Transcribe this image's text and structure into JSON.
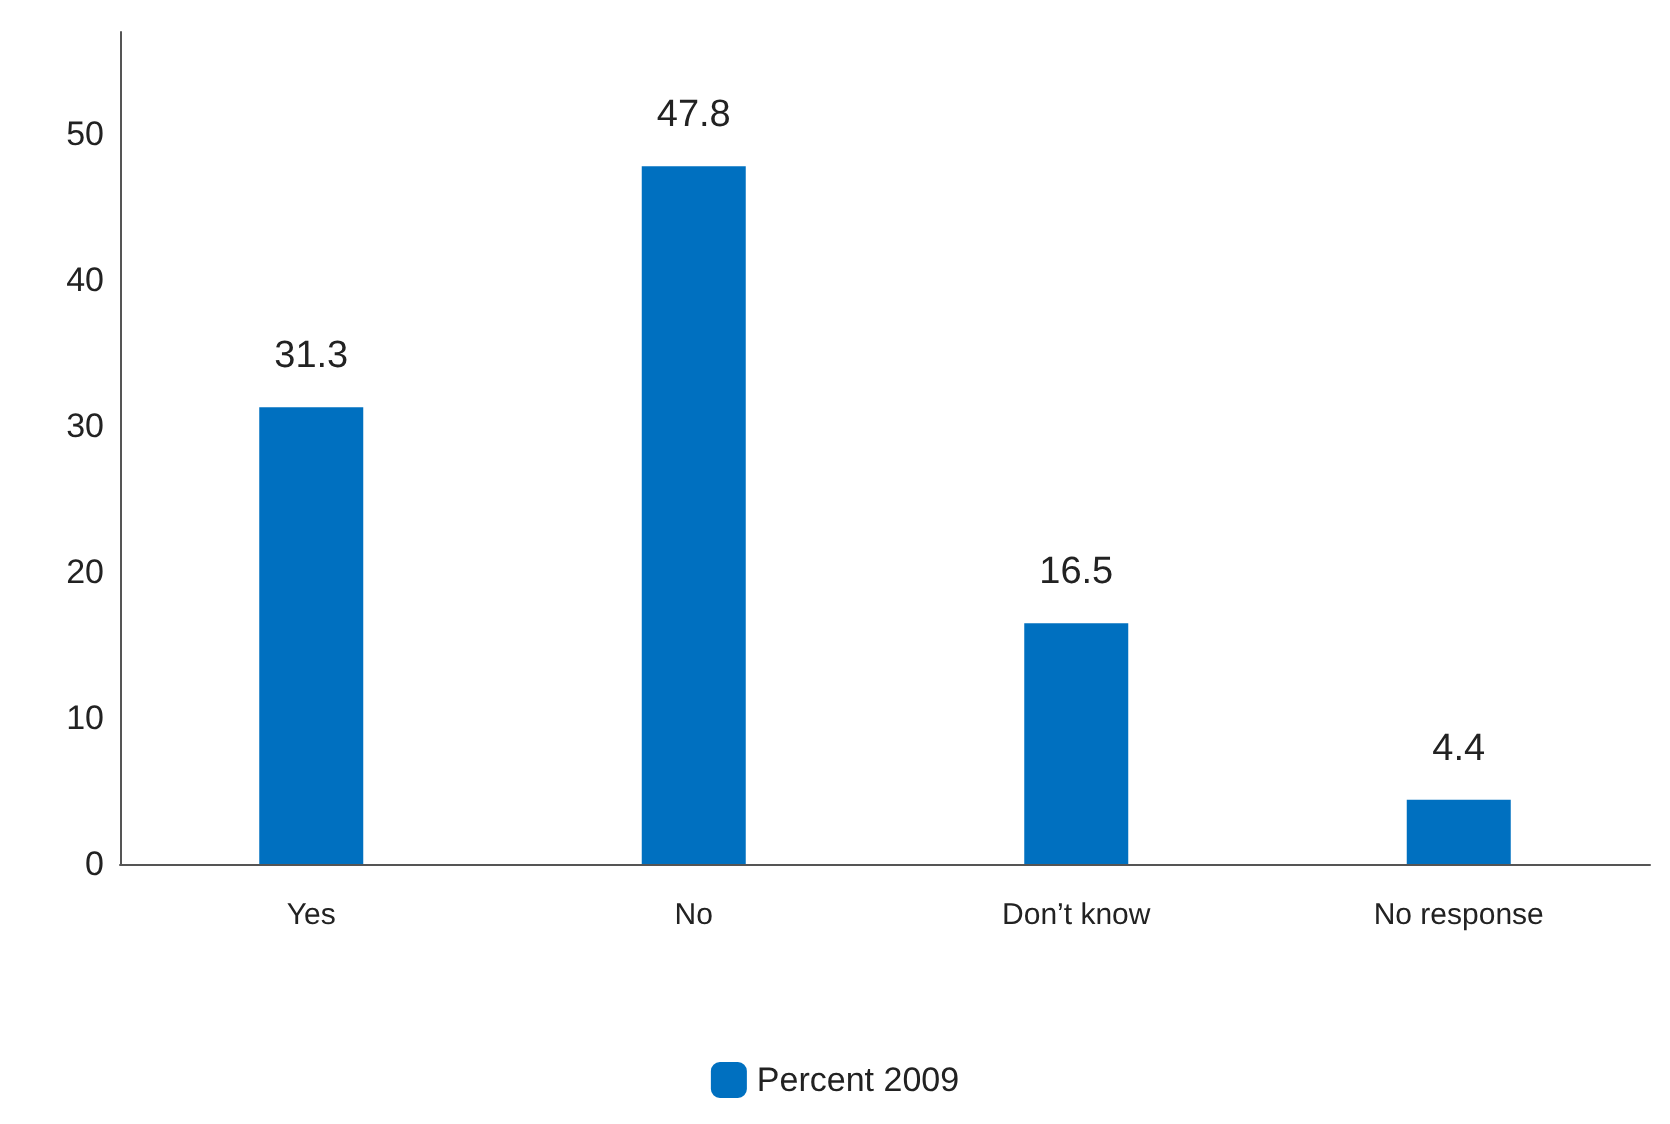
{
  "chart_data": {
    "type": "bar",
    "categories": [
      "Yes",
      "No",
      "Don’t know",
      "No response"
    ],
    "series": [
      {
        "name": "Percent 2009",
        "color": "#0070c0",
        "values": [
          31.3,
          47.8,
          16.5,
          4.4
        ]
      }
    ],
    "ylim": [
      0,
      57
    ],
    "yticks": [
      0,
      10,
      20,
      30,
      40,
      50
    ],
    "grid": false,
    "legend": "bottom",
    "data_labels": true
  }
}
